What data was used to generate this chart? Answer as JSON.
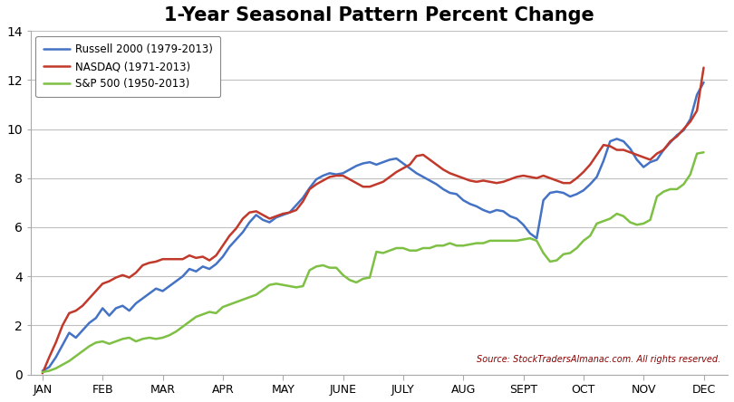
{
  "title": "1-Year Seasonal Pattern Percent Change",
  "title_fontsize": 15,
  "background_color": "#ffffff",
  "source_text": "Source: StockTradersAlmanac.com. All rights reserved.",
  "ylim": [
    0,
    14
  ],
  "yticks": [
    0,
    2,
    4,
    6,
    8,
    10,
    12,
    14
  ],
  "month_labels": [
    "JAN",
    "FEB",
    "MAR",
    "APR",
    "MAY",
    "JUNE",
    "JULY",
    "AUG",
    "SEPT",
    "OCT",
    "NOV",
    "DEC"
  ],
  "legend": [
    {
      "label": "Russell 2000 (1979-2013)",
      "color": "#4472C4"
    },
    {
      "label": "NASDAQ (1971-2013)",
      "color": "#C0392B"
    },
    {
      "label": "S&P 500 (1950-2013)",
      "color": "#7DC044"
    }
  ],
  "russell2000": [
    0.15,
    0.3,
    0.7,
    1.2,
    1.7,
    1.5,
    1.8,
    2.1,
    2.3,
    2.7,
    2.4,
    2.7,
    2.8,
    2.6,
    2.9,
    3.1,
    3.3,
    3.5,
    3.4,
    3.6,
    3.8,
    4.0,
    4.3,
    4.2,
    4.4,
    4.3,
    4.5,
    4.8,
    5.2,
    5.5,
    5.8,
    6.2,
    6.5,
    6.3,
    6.2,
    6.4,
    6.5,
    6.6,
    6.9,
    7.2,
    7.6,
    7.95,
    8.1,
    8.2,
    8.15,
    8.2,
    8.35,
    8.5,
    8.6,
    8.65,
    8.55,
    8.65,
    8.75,
    8.8,
    8.6,
    8.4,
    8.2,
    8.05,
    7.9,
    7.75,
    7.55,
    7.4,
    7.35,
    7.1,
    6.95,
    6.85,
    6.7,
    6.6,
    6.7,
    6.65,
    6.45,
    6.35,
    6.1,
    5.75,
    5.55,
    7.1,
    7.4,
    7.45,
    7.4,
    7.25,
    7.35,
    7.5,
    7.75,
    8.05,
    8.7,
    9.5,
    9.6,
    9.5,
    9.2,
    8.75,
    8.45,
    8.65,
    8.75,
    9.15,
    9.45,
    9.75,
    9.95,
    10.4,
    11.4,
    11.9
  ],
  "nasdaq": [
    0.05,
    0.7,
    1.3,
    2.0,
    2.5,
    2.6,
    2.8,
    3.1,
    3.4,
    3.7,
    3.8,
    3.95,
    4.05,
    3.95,
    4.15,
    4.45,
    4.55,
    4.6,
    4.7,
    4.7,
    4.7,
    4.7,
    4.85,
    4.75,
    4.8,
    4.65,
    4.85,
    5.25,
    5.65,
    5.95,
    6.35,
    6.6,
    6.65,
    6.5,
    6.35,
    6.45,
    6.55,
    6.6,
    6.7,
    7.05,
    7.55,
    7.75,
    7.9,
    8.05,
    8.1,
    8.1,
    7.95,
    7.8,
    7.65,
    7.65,
    7.75,
    7.85,
    8.05,
    8.25,
    8.4,
    8.55,
    8.9,
    8.95,
    8.75,
    8.55,
    8.35,
    8.2,
    8.1,
    8.0,
    7.9,
    7.85,
    7.9,
    7.85,
    7.8,
    7.85,
    7.95,
    8.05,
    8.1,
    8.05,
    8.0,
    8.1,
    8.0,
    7.9,
    7.8,
    7.8,
    8.0,
    8.25,
    8.55,
    8.95,
    9.35,
    9.3,
    9.15,
    9.15,
    9.05,
    8.95,
    8.85,
    8.75,
    9.0,
    9.15,
    9.5,
    9.7,
    10.0,
    10.3,
    10.75,
    12.5
  ],
  "sp500": [
    0.1,
    0.15,
    0.25,
    0.4,
    0.55,
    0.75,
    0.95,
    1.15,
    1.3,
    1.35,
    1.25,
    1.35,
    1.45,
    1.5,
    1.35,
    1.45,
    1.5,
    1.45,
    1.5,
    1.6,
    1.75,
    1.95,
    2.15,
    2.35,
    2.45,
    2.55,
    2.5,
    2.75,
    2.85,
    2.95,
    3.05,
    3.15,
    3.25,
    3.45,
    3.65,
    3.7,
    3.65,
    3.6,
    3.55,
    3.6,
    4.25,
    4.4,
    4.45,
    4.35,
    4.35,
    4.05,
    3.85,
    3.75,
    3.9,
    3.95,
    5.0,
    4.95,
    5.05,
    5.15,
    5.15,
    5.05,
    5.05,
    5.15,
    5.15,
    5.25,
    5.25,
    5.35,
    5.25,
    5.25,
    5.3,
    5.35,
    5.35,
    5.45,
    5.45,
    5.45,
    5.45,
    5.45,
    5.5,
    5.55,
    5.45,
    4.95,
    4.6,
    4.65,
    4.9,
    4.95,
    5.15,
    5.45,
    5.65,
    6.15,
    6.25,
    6.35,
    6.55,
    6.45,
    6.2,
    6.1,
    6.15,
    6.3,
    7.25,
    7.45,
    7.55,
    7.55,
    7.75,
    8.15,
    9.0,
    9.05
  ],
  "n_points": 100
}
